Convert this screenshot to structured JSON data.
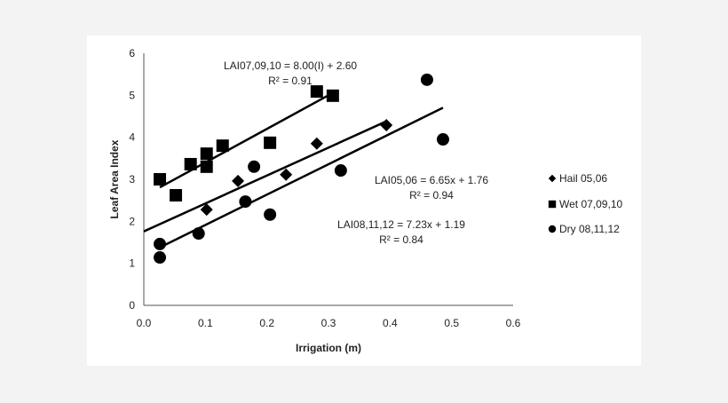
{
  "chart_data": {
    "type": "scatter",
    "title": "",
    "xlabel": "Irrigation (m)",
    "ylabel": "Leaf Area Index",
    "xlim": [
      0,
      0.6
    ],
    "ylim": [
      0,
      6
    ],
    "xticks": [
      "0.0",
      "0.1",
      "0.2",
      "0.3",
      "0.4",
      "0.5",
      "0.6"
    ],
    "yticks": [
      "0",
      "1",
      "2",
      "3",
      "4",
      "5",
      "6"
    ],
    "grid": false,
    "legend_position": "right",
    "series": [
      {
        "name": "Hail 05,06",
        "marker": "diamond",
        "color": "#000000",
        "x": [
          0.102,
          0.153,
          0.231,
          0.281,
          0.394
        ],
        "y": [
          2.28,
          2.96,
          3.11,
          3.85,
          4.29
        ],
        "fit": {
          "slope": 6.65,
          "intercept": 1.76,
          "x_range": [
            0.0,
            0.394
          ]
        }
      },
      {
        "name": "Wet 07,09,10",
        "marker": "square",
        "color": "#000000",
        "x": [
          0.026,
          0.052,
          0.076,
          0.102,
          0.102,
          0.128,
          0.205,
          0.281,
          0.307
        ],
        "y": [
          3.0,
          2.62,
          3.36,
          3.61,
          3.3,
          3.8,
          3.87,
          5.09,
          4.99
        ],
        "fit": {
          "slope": 8.0,
          "intercept": 2.6,
          "x_range": [
            0.026,
            0.3
          ]
        }
      },
      {
        "name": "Dry 08,11,12",
        "marker": "circle",
        "color": "#000000",
        "x": [
          0.026,
          0.026,
          0.089,
          0.165,
          0.179,
          0.205,
          0.32,
          0.46,
          0.486
        ],
        "y": [
          1.46,
          1.14,
          1.71,
          2.47,
          3.3,
          2.16,
          3.21,
          5.37,
          3.95
        ],
        "fit": {
          "slope": 7.23,
          "intercept": 1.19,
          "x_range": [
            0.026,
            0.486
          ]
        }
      }
    ],
    "annotations": [
      {
        "line1": "LAI07,09,10 = 8.00(I) + 2.60",
        "line2": "R² = 0.91"
      },
      {
        "line1": "LAI05,06 = 6.65x + 1.76",
        "line2": "R² = 0.94"
      },
      {
        "line1": "LAI08,11,12 = 7.23x + 1.19",
        "line2": "R² = 0.84"
      }
    ]
  }
}
